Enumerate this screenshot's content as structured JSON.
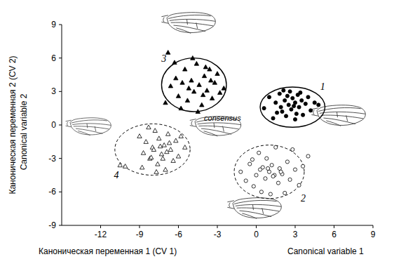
{
  "chart_data": {
    "type": "scatter",
    "x_label": [
      "Каноническая переменная 1 (CV 1)",
      "Canonical variable 1"
    ],
    "y_label": [
      "Каноническая переменная 2 (CV 2)",
      "Canonical variable 2"
    ],
    "xlim": [
      -15,
      9
    ],
    "ylim": [
      -9,
      9
    ],
    "xticks": [
      -12,
      -9,
      -6,
      -3,
      0,
      3,
      6,
      9
    ],
    "yticks": [
      -9,
      -6,
      -3,
      0,
      3,
      6,
      9
    ],
    "grid": false,
    "annotations": [
      {
        "text": "consensus",
        "x": -2.6,
        "y": 0.4
      }
    ],
    "series": [
      {
        "name": "1",
        "color": "#000000",
        "marker": "filled-circle",
        "line_style": "solid",
        "x": [
          0.6,
          1.0,
          1.3,
          1.5,
          1.8,
          2.0,
          2.2,
          2.3,
          2.5,
          2.6,
          2.7,
          2.8,
          3.0,
          3.1,
          3.2,
          3.3,
          3.5,
          3.6,
          3.8,
          4.0,
          4.2,
          4.5,
          1.9,
          2.4,
          2.9,
          3.4,
          3.0,
          2.1,
          1.6,
          4.8
        ],
        "values": [
          1.5,
          2.5,
          0.6,
          2.0,
          2.8,
          1.2,
          2.2,
          0.8,
          1.8,
          3.0,
          1.4,
          2.4,
          2.0,
          1.0,
          2.7,
          1.6,
          2.2,
          0.9,
          1.9,
          2.5,
          1.3,
          2.0,
          1.6,
          2.6,
          1.7,
          2.9,
          0.5,
          3.1,
          1.1,
          1.8
        ],
        "ellipse": {
          "cx": 2.8,
          "cy": 1.6,
          "rx": 2.5,
          "ry": 1.8
        }
      },
      {
        "name": "2",
        "color": "#000000",
        "marker": "open-circle",
        "line_style": "dashed",
        "x": [
          -1.2,
          -0.8,
          -0.5,
          -0.2,
          0.0,
          0.2,
          0.4,
          0.5,
          0.7,
          0.8,
          1.0,
          1.1,
          1.2,
          1.4,
          1.5,
          1.7,
          1.8,
          2.0,
          2.2,
          2.4,
          2.6,
          2.8,
          3.0,
          3.3,
          3.6,
          0.3,
          1.3,
          0.9,
          1.9,
          -0.3,
          4.0
        ],
        "values": [
          -4.2,
          -5.0,
          -3.5,
          -5.5,
          -4.5,
          -2.5,
          -6.0,
          -3.8,
          -4.8,
          -3.0,
          -4.2,
          -6.2,
          -3.6,
          -4.5,
          -2.0,
          -5.2,
          -3.9,
          -4.4,
          -6.1,
          -3.3,
          -4.9,
          -2.2,
          -4.0,
          -5.4,
          -3.7,
          -4.0,
          -4.6,
          -3.9,
          -4.2,
          -3.1,
          -2.8
        ],
        "ellipse": {
          "cx": 1.0,
          "cy": -4.2,
          "rx": 2.7,
          "ry": 2.4
        }
      },
      {
        "name": "3",
        "color": "#000000",
        "marker": "filled-triangle",
        "line_style": "solid",
        "x": [
          -7.0,
          -6.6,
          -6.2,
          -6.0,
          -5.7,
          -5.5,
          -5.3,
          -5.0,
          -4.8,
          -4.6,
          -4.4,
          -4.2,
          -4.0,
          -3.8,
          -3.6,
          -3.4,
          -3.2,
          -3.0,
          -2.8,
          -2.5,
          -5.8,
          -4.9,
          -4.1,
          -3.5,
          -6.3,
          -5.2,
          -4.5,
          -3.9,
          -6.8
        ],
        "values": [
          2.0,
          3.5,
          4.2,
          2.6,
          3.8,
          5.0,
          2.2,
          4.0,
          3.0,
          5.5,
          3.6,
          1.8,
          4.4,
          3.1,
          5.0,
          2.4,
          3.8,
          4.6,
          2.9,
          3.3,
          1.5,
          6.0,
          2.7,
          4.0,
          5.6,
          3.3,
          1.2,
          5.2,
          6.5
        ],
        "ellipse": {
          "cx": -4.8,
          "cy": 3.6,
          "rx": 2.5,
          "ry": 2.4
        }
      },
      {
        "name": "4",
        "color": "#000000",
        "marker": "open-triangle",
        "line_style": "dashed",
        "x": [
          -10.5,
          -10.1,
          -9.0,
          -8.7,
          -8.5,
          -8.2,
          -8.0,
          -7.8,
          -7.6,
          -7.5,
          -7.3,
          -7.1,
          -7.0,
          -6.8,
          -6.6,
          -6.4,
          -6.2,
          -6.0,
          -5.8,
          -5.5,
          -8.8,
          -7.9,
          -7.2,
          -6.7,
          -8.3,
          -7.7,
          -6.9,
          -7.4,
          -8.1
        ],
        "values": [
          -3.6,
          -3.7,
          -1.0,
          -2.5,
          -1.5,
          -3.0,
          -2.0,
          -0.5,
          -3.5,
          -1.2,
          -2.6,
          -1.8,
          -4.0,
          -0.8,
          -2.2,
          -3.2,
          -1.4,
          -2.8,
          -1.0,
          -2.0,
          -3.8,
          -2.2,
          -3.0,
          -1.6,
          -0.2,
          -4.2,
          -2.4,
          -1.9,
          -2.9
        ],
        "ellipse": {
          "cx": -8.0,
          "cy": -2.2,
          "rx": 2.9,
          "ry": 2.3
        }
      }
    ]
  }
}
